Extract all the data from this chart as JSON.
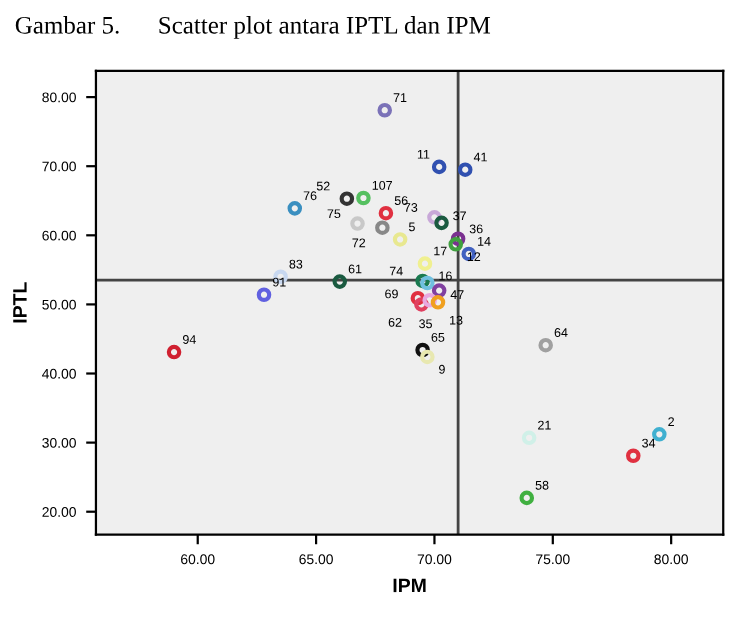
{
  "chart_data": {
    "type": "scatter",
    "title": "Gambar 5.      Scatter plot antara IPTL dan IPM",
    "xlabel": "IPM",
    "ylabel": "IPTL",
    "x": [
      67.9,
      70.2,
      71.3,
      66.3,
      67.0,
      64.1,
      67.95,
      70.0,
      70.3,
      66.75,
      67.8,
      68.55,
      71.0,
      70.9,
      71.45,
      69.6,
      63.5,
      66.0,
      69.5,
      69.7,
      70.2,
      62.8,
      69.3,
      69.45,
      69.8,
      70.15,
      59.0,
      69.5,
      69.7,
      74.7,
      74.0,
      79.5,
      78.4,
      73.9
    ],
    "values": [
      78.1,
      69.9,
      69.5,
      65.3,
      65.4,
      63.9,
      63.2,
      62.6,
      61.8,
      61.7,
      61.1,
      59.4,
      59.5,
      58.7,
      57.3,
      55.9,
      54.0,
      53.3,
      53.4,
      53.1,
      52.0,
      51.4,
      50.9,
      50.0,
      50.6,
      50.3,
      43.1,
      43.4,
      42.4,
      44.1,
      30.7,
      31.2,
      28.1,
      22.0
    ],
    "annotations": [
      {
        "text": "71",
        "x": 67.9,
        "y": 78.1
      },
      {
        "text": "11",
        "x": 70.2,
        "y": 69.9
      },
      {
        "text": "41",
        "x": 71.3,
        "y": 69.5
      },
      {
        "text": "52",
        "x": 66.3,
        "y": 65.3
      },
      {
        "text": "107",
        "x": 67.0,
        "y": 65.4
      },
      {
        "text": "76",
        "x": 64.1,
        "y": 63.9
      },
      {
        "text": "56",
        "x": 67.95,
        "y": 63.2
      },
      {
        "text": "73",
        "x": 70.0,
        "y": 62.6
      },
      {
        "text": "37",
        "x": 70.3,
        "y": 61.8
      },
      {
        "text": "75",
        "x": 66.75,
        "y": 61.7
      },
      {
        "text": "72",
        "x": 67.8,
        "y": 61.1
      },
      {
        "text": "5",
        "x": 68.55,
        "y": 59.4
      },
      {
        "text": "36",
        "x": 71.0,
        "y": 59.5
      },
      {
        "text": "12",
        "x": 70.9,
        "y": 58.7
      },
      {
        "text": "14",
        "x": 71.45,
        "y": 57.3
      },
      {
        "text": "17",
        "x": 69.6,
        "y": 55.9
      },
      {
        "text": "83",
        "x": 63.5,
        "y": 54.0
      },
      {
        "text": "61",
        "x": 66.0,
        "y": 53.3
      },
      {
        "text": "74",
        "x": 69.5,
        "y": 53.4
      },
      {
        "text": "16",
        "x": 69.7,
        "y": 53.1
      },
      {
        "text": "47",
        "x": 70.2,
        "y": 52.0
      },
      {
        "text": "91",
        "x": 62.8,
        "y": 51.4
      },
      {
        "text": "69",
        "x": 69.3,
        "y": 50.9
      },
      {
        "text": "62",
        "x": 69.45,
        "y": 50.0
      },
      {
        "text": "35",
        "x": 69.8,
        "y": 50.6
      },
      {
        "text": "13",
        "x": 70.15,
        "y": 50.3
      },
      {
        "text": "94",
        "x": 59.0,
        "y": 43.1
      },
      {
        "text": "65",
        "x": 69.5,
        "y": 43.4
      },
      {
        "text": "9",
        "x": 69.7,
        "y": 42.4
      },
      {
        "text": "64",
        "x": 74.7,
        "y": 44.1
      },
      {
        "text": "21",
        "x": 74.0,
        "y": 30.7
      },
      {
        "text": "2",
        "x": 79.5,
        "y": 31.2
      },
      {
        "text": "34",
        "x": 78.4,
        "y": 28.1
      },
      {
        "text": "58",
        "x": 73.9,
        "y": 22.0
      }
    ],
    "colors": [
      "#7b72b8",
      "#3050b0",
      "#3050b0",
      "#333333",
      "#55c060",
      "#3a8fc0",
      "#e03040",
      "#c8a8d8",
      "#1a5a40",
      "#c8c8c8",
      "#888888",
      "#e8e890",
      "#7a3090",
      "#40a040",
      "#4060c0",
      "#f0f090",
      "#c8d8f0",
      "#1a5a40",
      "#1a7a50",
      "#70c0e0",
      "#8040a0",
      "#6060e0",
      "#e03040",
      "#e04060",
      "#e8a8e0",
      "#f0a020",
      "#d02030",
      "#111111",
      "#e8e8b0",
      "#a0a0a0",
      "#d0f0e8",
      "#40b0d0",
      "#e03040",
      "#40b040"
    ],
    "xlim": [
      55.7,
      82.2
    ],
    "ylim": [
      16.7,
      83.8
    ],
    "xticks": [
      {
        "value": 60,
        "label": "60.00"
      },
      {
        "value": 65,
        "label": "65.00"
      },
      {
        "value": 70,
        "label": "70.00"
      },
      {
        "value": 75,
        "label": "75.00"
      },
      {
        "value": 80,
        "label": "80.00"
      }
    ],
    "yticks": [
      {
        "value": 20,
        "label": "20.00"
      },
      {
        "value": 30,
        "label": "30.00"
      },
      {
        "value": 40,
        "label": "40.00"
      },
      {
        "value": 50,
        "label": "50.00"
      },
      {
        "value": 60,
        "label": "60.00"
      },
      {
        "value": 70,
        "label": "70.00"
      },
      {
        "value": 80,
        "label": "80.00"
      }
    ],
    "ref_lines": [
      {
        "axis": "x",
        "value": 71.0,
        "color": "#444444"
      },
      {
        "axis": "y",
        "value": 53.5,
        "color": "#444444"
      }
    ],
    "marker": "circle",
    "grid": false
  }
}
